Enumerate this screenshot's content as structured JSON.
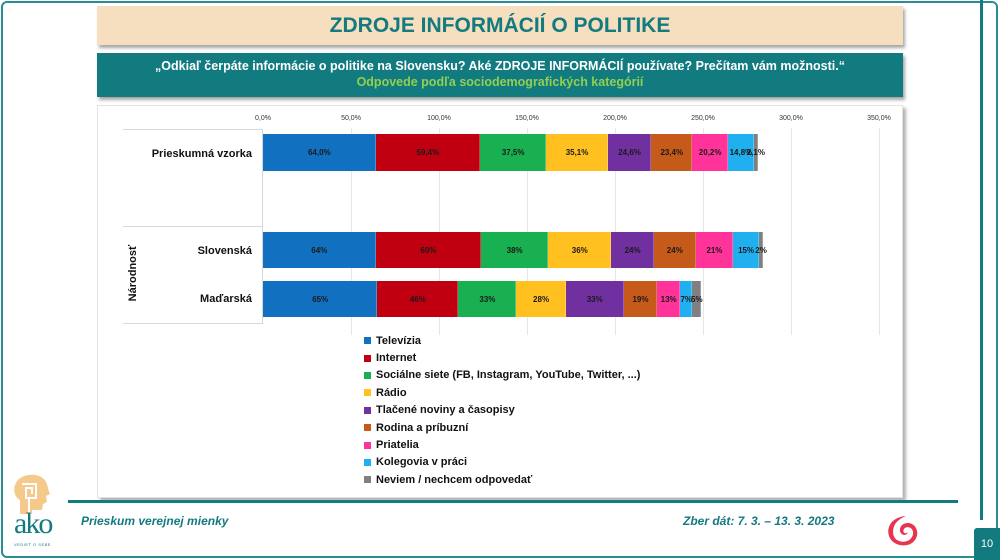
{
  "header": {
    "title": "ZDROJE INFORMÁCIÍ O POLITIKE",
    "question": "„Odkiaľ čerpáte informácie o politike na Slovensku? Aké ZDROJE INFORMÁCIÍ používate? Prečítam vám možnosti.“",
    "subtitle": "Odpovede podľa sociodemografických kategórií"
  },
  "colors": {
    "teal": "#137a80",
    "title_bg": "#f6dfbf",
    "subtitle_green": "#92d050"
  },
  "chart_data": {
    "type": "bar",
    "orientation": "horizontal",
    "stacked": true,
    "title": "ZDROJE INFORMÁCIÍ O POLITIKE",
    "xlabel": "",
    "ylabel": "",
    "xlim": [
      0,
      350
    ],
    "x_ticks": [
      "0,0%",
      "50,0%",
      "100,0%",
      "150,0%",
      "200,0%",
      "250,0%",
      "300,0%",
      "350,0%"
    ],
    "grid": true,
    "legend_position": "bottom",
    "categories": [
      "Prieskumná vzorka",
      "Slovenská",
      "Maďarská"
    ],
    "groups": [
      {
        "label": "",
        "categories": [
          "Prieskumná vzorka"
        ]
      },
      {
        "label": "Národnosť",
        "categories": [
          "Slovenská",
          "Maďarská"
        ]
      }
    ],
    "series": [
      {
        "name": "Televízia",
        "color": "#1170c0",
        "values": [
          64.0,
          64,
          65
        ],
        "labels": [
          "64,0%",
          "64%",
          "65%"
        ]
      },
      {
        "name": "Internet",
        "color": "#c00010",
        "values": [
          59.4,
          60,
          46
        ],
        "labels": [
          "59,4%",
          "60%",
          "46%"
        ]
      },
      {
        "name": "Sociálne siete (FB, Instagram, YouTube, Twitter, ...)",
        "color": "#18b050",
        "values": [
          37.5,
          38,
          33
        ],
        "labels": [
          "37,5%",
          "38%",
          "33%"
        ]
      },
      {
        "name": "Rádio",
        "color": "#ffc020",
        "values": [
          35.1,
          36,
          28
        ],
        "labels": [
          "35,1%",
          "36%",
          "28%"
        ]
      },
      {
        "name": "Tlačené noviny a časopisy",
        "color": "#7030a0",
        "values": [
          24.6,
          24,
          33
        ],
        "labels": [
          "24,6%",
          "24%",
          "33%"
        ]
      },
      {
        "name": "Rodina a príbuzní",
        "color": "#c55a1a",
        "values": [
          23.4,
          24,
          19
        ],
        "labels": [
          "23,4%",
          "24%",
          "19%"
        ]
      },
      {
        "name": "Priatelia",
        "color": "#ff3399",
        "values": [
          20.2,
          21,
          13
        ],
        "labels": [
          "20,2%",
          "21%",
          "13%"
        ]
      },
      {
        "name": "Kolegovia v práci",
        "color": "#20b0f0",
        "values": [
          14.8,
          15,
          7
        ],
        "labels": [
          "14,8%",
          "15%",
          "7%"
        ]
      },
      {
        "name": "Neviem / nechcem odpovedať",
        "color": "#808080",
        "values": [
          2.1,
          2,
          5
        ],
        "labels": [
          "2,1%",
          "2%",
          "5%"
        ]
      }
    ]
  },
  "legend": {
    "items": [
      "Televízia",
      "Internet",
      "Sociálne siete (FB, Instagram, YouTube, Twitter, ...)",
      "Rádio",
      "Tlačené noviny a časopisy",
      "Rodina a príbuzní",
      "Priatelia",
      "Kolegovia v práci",
      "Neviem / nechcem odpovedať"
    ]
  },
  "footer": {
    "left": "Prieskum verejnej mienky",
    "right": "Zber dát: 7. 3. – 13. 3. 2023",
    "page_number": "10",
    "logo_brand": "ako",
    "logo_tagline": "VEDIEŤ O SEBE"
  }
}
